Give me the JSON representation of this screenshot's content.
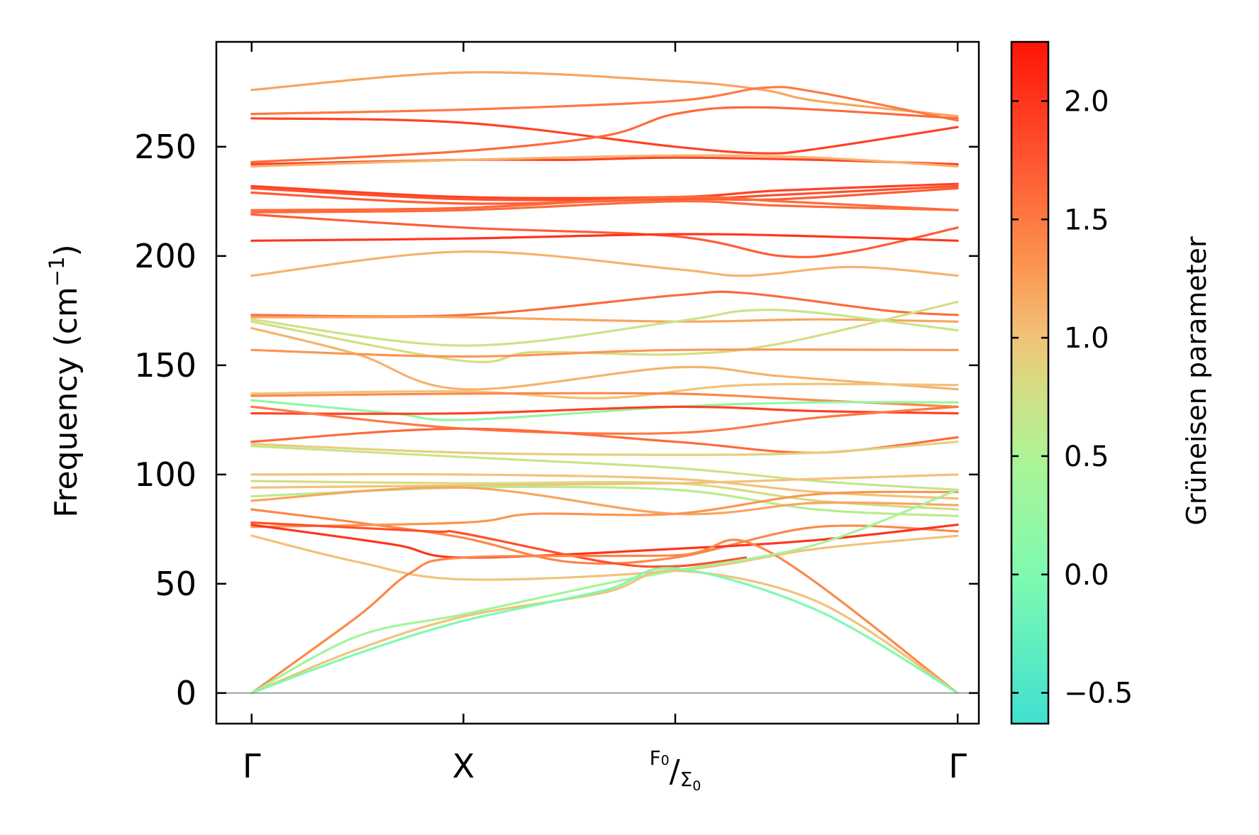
{
  "chart_data": {
    "type": "line",
    "title": "",
    "ylabel_main": "Frequency (cm",
    "ylabel_sup": "−1",
    "ylabel_close": ")",
    "ylim": [
      -14,
      298
    ],
    "yticks": [
      {
        "value": 0,
        "label": "0"
      },
      {
        "value": 50,
        "label": "50"
      },
      {
        "value": 100,
        "label": "100"
      },
      {
        "value": 150,
        "label": "150"
      },
      {
        "value": 200,
        "label": "200"
      },
      {
        "value": 250,
        "label": "250"
      }
    ],
    "xlim": [
      -0.1,
      2.06
    ],
    "xticks": [
      {
        "value": 0,
        "label": "Γ"
      },
      {
        "value": 0.6,
        "label": "X"
      },
      {
        "value": 1.2,
        "label": "F0/Σ0",
        "main": "F",
        "main_sub": "0",
        "slash": "/",
        "second": "Σ",
        "second_sub": "0"
      },
      {
        "value": 2.0,
        "label": "Γ"
      }
    ],
    "zero_line": 0,
    "colorbar": {
      "label": "Grüneisen parameter",
      "range": [
        -0.63,
        2.25
      ],
      "ticks": [
        {
          "value": -0.5,
          "label": "−0.5"
        },
        {
          "value": 0.0,
          "label": "0.0"
        },
        {
          "value": 0.5,
          "label": "0.5"
        },
        {
          "value": 1.0,
          "label": "1.0"
        },
        {
          "value": 1.5,
          "label": "1.5"
        },
        {
          "value": 2.0,
          "label": "2.0"
        }
      ],
      "colors": [
        {
          "value": -0.63,
          "color": "#3fe0d0"
        },
        {
          "value": 0.0,
          "color": "#7ffab0"
        },
        {
          "value": 0.5,
          "color": "#aef395"
        },
        {
          "value": 0.8,
          "color": "#d6dc82"
        },
        {
          "value": 1.0,
          "color": "#f2c27a"
        },
        {
          "value": 1.3,
          "color": "#fb9650"
        },
        {
          "value": 1.7,
          "color": "#ff5c34"
        },
        {
          "value": 2.25,
          "color": "#ff1408"
        }
      ]
    },
    "series": [
      {
        "g": 1.2,
        "points": [
          [
            0,
            276
          ],
          [
            0.6,
            284
          ],
          [
            1.2,
            280
          ],
          [
            1.45,
            276
          ],
          [
            1.6,
            271
          ],
          [
            2.0,
            264
          ]
        ]
      },
      {
        "g": 1.5,
        "points": [
          [
            0,
            265
          ],
          [
            0.6,
            267
          ],
          [
            1.2,
            271
          ],
          [
            1.45,
            277
          ],
          [
            1.6,
            275
          ],
          [
            2.0,
            262
          ]
        ]
      },
      {
        "g": 1.9,
        "points": [
          [
            0,
            263
          ],
          [
            0.6,
            261
          ],
          [
            1.2,
            250
          ],
          [
            1.45,
            247
          ],
          [
            1.6,
            249
          ],
          [
            2.0,
            259
          ]
        ]
      },
      {
        "g": 1.6,
        "points": [
          [
            0,
            243
          ],
          [
            0.6,
            248
          ],
          [
            1.0,
            255
          ],
          [
            1.2,
            265
          ],
          [
            1.45,
            268
          ],
          [
            2.0,
            263
          ]
        ]
      },
      {
        "g": 1.9,
        "points": [
          [
            0,
            242
          ],
          [
            0.6,
            244
          ],
          [
            0.9,
            244
          ],
          [
            1.2,
            245
          ],
          [
            1.6,
            244
          ],
          [
            2.0,
            242
          ]
        ]
      },
      {
        "g": 1.1,
        "points": [
          [
            0,
            241
          ],
          [
            0.6,
            244
          ],
          [
            1.2,
            246
          ],
          [
            1.6,
            245
          ],
          [
            2.0,
            241
          ]
        ]
      },
      {
        "g": 1.9,
        "points": [
          [
            0,
            232
          ],
          [
            0.6,
            227
          ],
          [
            1.2,
            227
          ],
          [
            1.5,
            230
          ],
          [
            2.0,
            233
          ]
        ]
      },
      {
        "g": 1.8,
        "points": [
          [
            0,
            231
          ],
          [
            0.6,
            226
          ],
          [
            1.2,
            226
          ],
          [
            1.5,
            228
          ],
          [
            2.0,
            232
          ]
        ]
      },
      {
        "g": 1.7,
        "points": [
          [
            0,
            229
          ],
          [
            0.6,
            224
          ],
          [
            1.2,
            226
          ],
          [
            1.5,
            226
          ],
          [
            2.0,
            231
          ]
        ]
      },
      {
        "g": 1.6,
        "points": [
          [
            0,
            221
          ],
          [
            0.6,
            222
          ],
          [
            1.2,
            227
          ],
          [
            1.5,
            225
          ],
          [
            2.0,
            221
          ]
        ]
      },
      {
        "g": 1.6,
        "points": [
          [
            0,
            220
          ],
          [
            0.6,
            221
          ],
          [
            1.2,
            225
          ],
          [
            1.5,
            223
          ],
          [
            2.0,
            221
          ]
        ]
      },
      {
        "g": 1.7,
        "points": [
          [
            0,
            219
          ],
          [
            0.6,
            213
          ],
          [
            1.2,
            209
          ],
          [
            1.5,
            200
          ],
          [
            1.7,
            202
          ],
          [
            2.0,
            213
          ]
        ]
      },
      {
        "g": 2.0,
        "points": [
          [
            0,
            207
          ],
          [
            0.6,
            208
          ],
          [
            1.2,
            210
          ],
          [
            1.6,
            209
          ],
          [
            2.0,
            207
          ]
        ]
      },
      {
        "g": 1.1,
        "points": [
          [
            0,
            191
          ],
          [
            0.6,
            202
          ],
          [
            1.2,
            194
          ],
          [
            1.4,
            191
          ],
          [
            1.7,
            195
          ],
          [
            2.0,
            191
          ]
        ]
      },
      {
        "g": 1.6,
        "points": [
          [
            0,
            173
          ],
          [
            0.6,
            173
          ],
          [
            1.2,
            182
          ],
          [
            1.4,
            183
          ],
          [
            1.8,
            175
          ],
          [
            2.0,
            173
          ]
        ]
      },
      {
        "g": 1.2,
        "points": [
          [
            0,
            172
          ],
          [
            0.4,
            172
          ],
          [
            0.6,
            172
          ],
          [
            1.2,
            170
          ],
          [
            1.6,
            171
          ],
          [
            2.0,
            170
          ]
        ]
      },
      {
        "g": 0.7,
        "points": [
          [
            0,
            171
          ],
          [
            0.6,
            159
          ],
          [
            1.2,
            170
          ],
          [
            1.4,
            175
          ],
          [
            1.6,
            174
          ],
          [
            2.0,
            166
          ]
        ]
      },
      {
        "g": 0.8,
        "points": [
          [
            0,
            170
          ],
          [
            0.6,
            152
          ],
          [
            0.8,
            156
          ],
          [
            1.2,
            155
          ],
          [
            1.5,
            160
          ],
          [
            2.0,
            179
          ]
        ]
      },
      {
        "g": 1.1,
        "points": [
          [
            0,
            167
          ],
          [
            0.3,
            155
          ],
          [
            0.6,
            139
          ],
          [
            1.2,
            149
          ],
          [
            1.5,
            145
          ],
          [
            2.0,
            139
          ]
        ]
      },
      {
        "g": 1.3,
        "points": [
          [
            0,
            157
          ],
          [
            0.6,
            154
          ],
          [
            1.2,
            157
          ],
          [
            2.0,
            157
          ]
        ]
      },
      {
        "g": 1.0,
        "points": [
          [
            0,
            137
          ],
          [
            0.6,
            138
          ],
          [
            1.0,
            135
          ],
          [
            1.4,
            141
          ],
          [
            2.0,
            141
          ]
        ]
      },
      {
        "g": 1.4,
        "points": [
          [
            0,
            136
          ],
          [
            0.6,
            137
          ],
          [
            1.2,
            137
          ],
          [
            1.6,
            134
          ],
          [
            2.0,
            131
          ]
        ]
      },
      {
        "g": 0.2,
        "points": [
          [
            0,
            134
          ],
          [
            0.4,
            128
          ],
          [
            0.6,
            125
          ],
          [
            1.2,
            131
          ],
          [
            1.6,
            133
          ],
          [
            2.0,
            133
          ]
        ]
      },
      {
        "g": 1.9,
        "points": [
          [
            0,
            128
          ],
          [
            0.6,
            128
          ],
          [
            1.2,
            131
          ],
          [
            1.6,
            129
          ],
          [
            2.0,
            128
          ]
        ]
      },
      {
        "g": 1.5,
        "points": [
          [
            0,
            131
          ],
          [
            0.6,
            121
          ],
          [
            1.2,
            119
          ],
          [
            1.6,
            126
          ],
          [
            2.0,
            131
          ]
        ]
      },
      {
        "g": 1.6,
        "points": [
          [
            0,
            115
          ],
          [
            0.6,
            121
          ],
          [
            1.2,
            115
          ],
          [
            1.6,
            110
          ],
          [
            2.0,
            117
          ]
        ]
      },
      {
        "g": 0.9,
        "points": [
          [
            0,
            114
          ],
          [
            0.6,
            110
          ],
          [
            1.2,
            109
          ],
          [
            1.6,
            110
          ],
          [
            2.0,
            115
          ]
        ]
      },
      {
        "g": 0.7,
        "points": [
          [
            0,
            113
          ],
          [
            0.6,
            108
          ],
          [
            1.2,
            103
          ],
          [
            1.6,
            97
          ],
          [
            2.0,
            93
          ]
        ]
      },
      {
        "g": 1.0,
        "points": [
          [
            0,
            100
          ],
          [
            0.6,
            100
          ],
          [
            1.2,
            98
          ],
          [
            1.6,
            92
          ],
          [
            2.0,
            89
          ]
        ]
      },
      {
        "g": 0.8,
        "points": [
          [
            0,
            97
          ],
          [
            0.6,
            96
          ],
          [
            1.2,
            96
          ],
          [
            1.6,
            88
          ],
          [
            2.0,
            84
          ]
        ]
      },
      {
        "g": 1.0,
        "points": [
          [
            0,
            94
          ],
          [
            0.6,
            95
          ],
          [
            1.2,
            96
          ],
          [
            1.6,
            98
          ],
          [
            2.0,
            100
          ]
        ]
      },
      {
        "g": 0.6,
        "points": [
          [
            0,
            90
          ],
          [
            0.6,
            94
          ],
          [
            1.2,
            93
          ],
          [
            1.6,
            84
          ],
          [
            2.0,
            81
          ]
        ]
      },
      {
        "g": 1.2,
        "points": [
          [
            0,
            88
          ],
          [
            0.6,
            94
          ],
          [
            1.2,
            82
          ],
          [
            1.6,
            87
          ],
          [
            2.0,
            86
          ]
        ]
      },
      {
        "g": 1.4,
        "points": [
          [
            0,
            84
          ],
          [
            0.3,
            78
          ],
          [
            0.6,
            71
          ],
          [
            0.9,
            60
          ],
          [
            1.2,
            62
          ],
          [
            1.6,
            76
          ],
          [
            2.0,
            74
          ]
        ]
      },
      {
        "g": 1.3,
        "points": [
          [
            0,
            76
          ],
          [
            0.6,
            78
          ],
          [
            0.8,
            82
          ],
          [
            1.2,
            82
          ],
          [
            1.6,
            91
          ],
          [
            2.0,
            92
          ]
        ]
      },
      {
        "g": 2.0,
        "points": [
          [
            0,
            77
          ],
          [
            0.4,
            68
          ],
          [
            0.6,
            62
          ],
          [
            1.2,
            66
          ],
          [
            1.6,
            70
          ],
          [
            2.0,
            77
          ]
        ]
      },
      {
        "g": 1.8,
        "points": [
          [
            0,
            78
          ],
          [
            0.5,
            74
          ],
          [
            0.6,
            73
          ],
          [
            1.0,
            60
          ],
          [
            1.2,
            58
          ],
          [
            1.4,
            62
          ]
        ]
      },
      {
        "g": 1.0,
        "points": [
          [
            0,
            72
          ],
          [
            0.3,
            60
          ],
          [
            0.6,
            52
          ],
          [
            1.2,
            56
          ],
          [
            1.6,
            66
          ],
          [
            2.0,
            72
          ]
        ]
      },
      {
        "g": 1.4,
        "points": [
          [
            0,
            0
          ],
          [
            0.3,
            35
          ],
          [
            0.45,
            55
          ],
          [
            0.6,
            62
          ],
          [
            1.2,
            63
          ],
          [
            1.45,
            66
          ],
          [
            2.0,
            0
          ]
        ]
      },
      {
        "g": 0.4,
        "points": [
          [
            0,
            0
          ],
          [
            0.3,
            26
          ],
          [
            0.6,
            36
          ],
          [
            1.0,
            50
          ],
          [
            1.2,
            56
          ],
          [
            1.6,
            68
          ],
          [
            2.0,
            93
          ]
        ]
      },
      {
        "g": 1.0,
        "points": [
          [
            0,
            0
          ],
          [
            0.3,
            20
          ],
          [
            0.6,
            35
          ],
          [
            1.0,
            46
          ],
          [
            1.2,
            56
          ],
          [
            1.6,
            42
          ],
          [
            2.0,
            0
          ]
        ]
      },
      {
        "g": 0.0,
        "points": [
          [
            0,
            0
          ],
          [
            0.3,
            18
          ],
          [
            0.6,
            33
          ],
          [
            1.0,
            47
          ],
          [
            1.2,
            57
          ],
          [
            1.6,
            38
          ],
          [
            2.0,
            0
          ]
        ]
      }
    ]
  }
}
